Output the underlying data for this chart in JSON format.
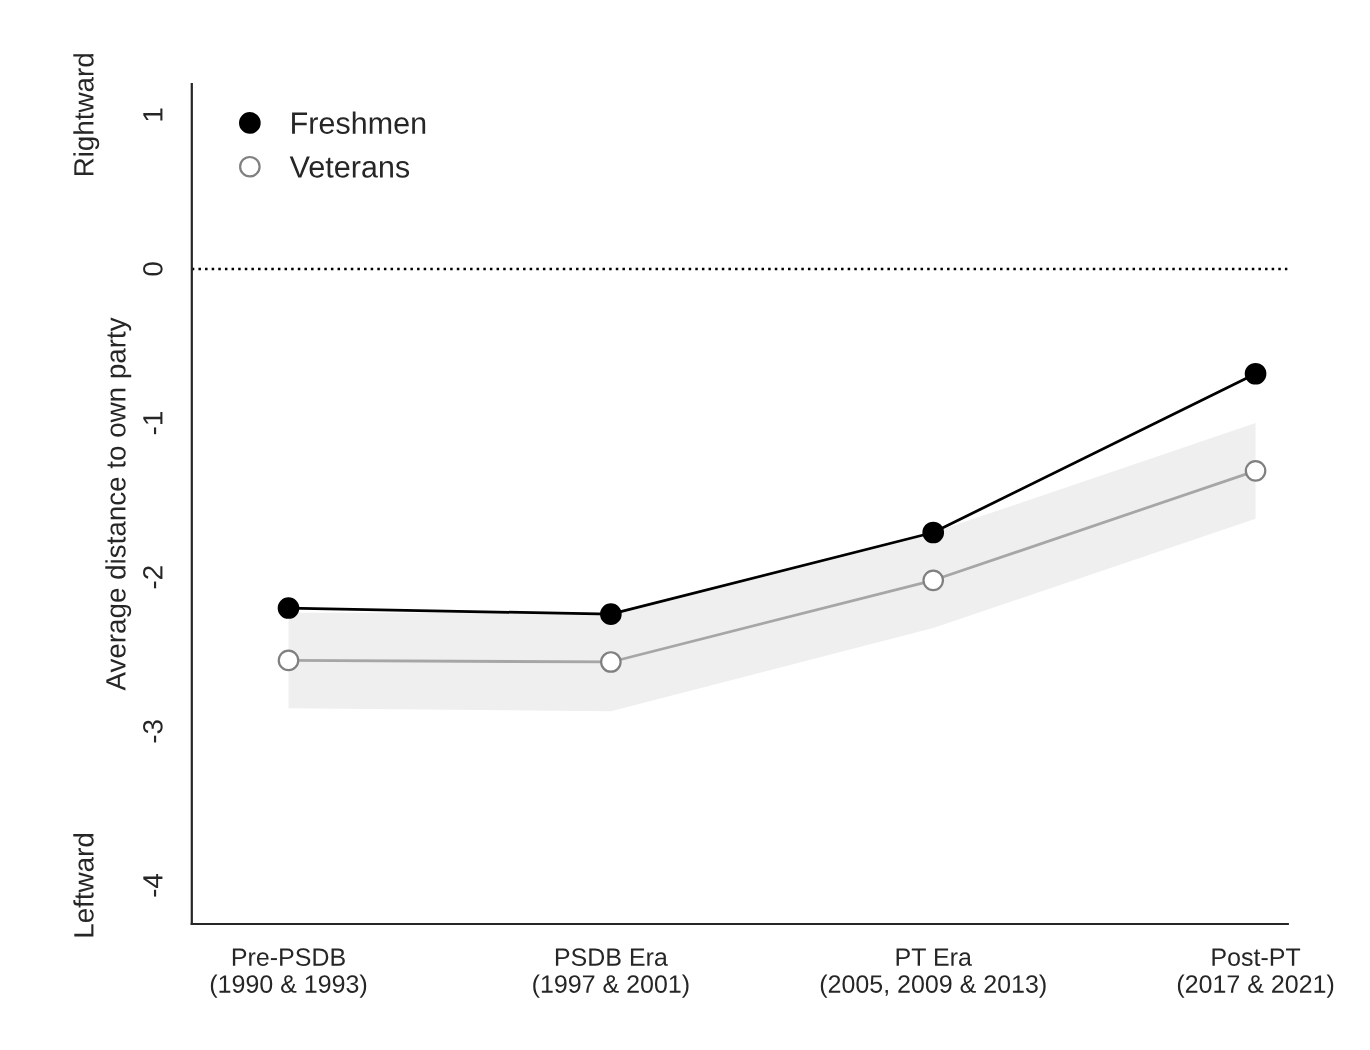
{
  "chart_data": {
    "type": "line",
    "ylabel": "Average distance to own party",
    "categories": [
      "Pre-PSDB\n(1990 & 1993)",
      "PSDB Era\n(1997 & 2001)",
      "PT Era\n(2005, 2009 & 2013)",
      "Post-PT\n(2017 & 2021)"
    ],
    "series": [
      {
        "name": "Freshmen",
        "color": "#000000",
        "values": [
          -2.2,
          -2.24,
          -1.71,
          -0.68
        ]
      },
      {
        "name": "Veterans",
        "color": "#a6a6a6",
        "values": [
          -2.54,
          -2.55,
          -2.02,
          -1.31
        ],
        "lower": [
          -2.85,
          -2.87,
          -2.33,
          -1.62
        ],
        "upper": [
          -2.23,
          -2.23,
          -1.71,
          -1.0
        ]
      }
    ],
    "ylim": [
      -4.25,
      1.2
    ],
    "yticks": [
      -4,
      -3,
      -2,
      -1,
      0,
      1
    ],
    "ref_lines": [
      {
        "axis": "y",
        "value": 0,
        "color": "#000000",
        "line_style": "dotted"
      }
    ],
    "annotations": [
      "Rightward",
      "Leftward"
    ],
    "marker": "circle",
    "line_style": "solid",
    "legend": "top left",
    "grid": false
  }
}
